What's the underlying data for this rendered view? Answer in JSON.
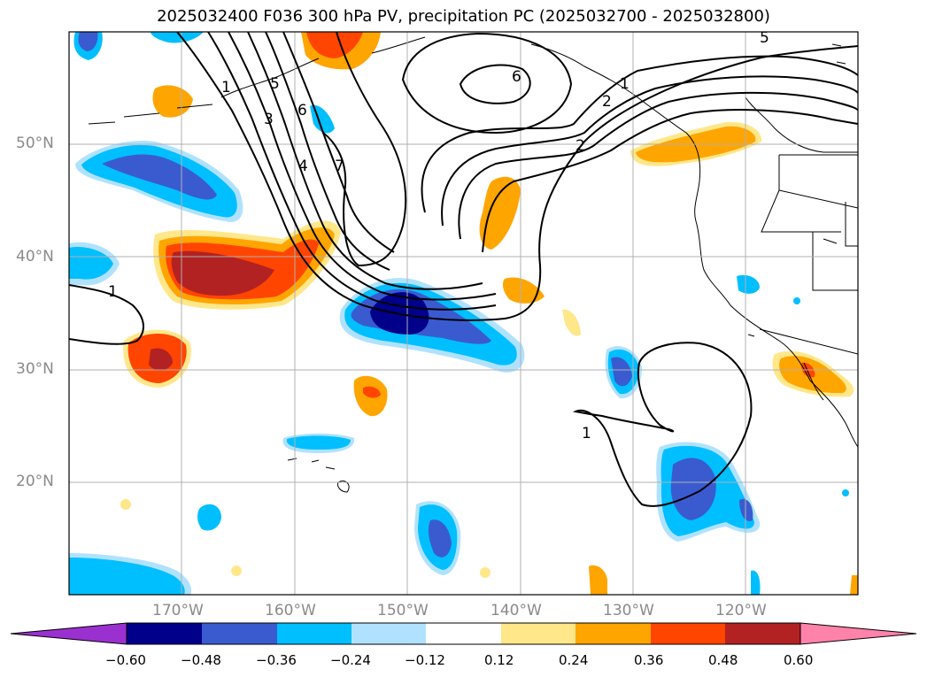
{
  "title": "2025032400 F036 300 hPa PV, precipitation PC (2025032700 - 2025032800)",
  "map": {
    "lat_labels": [
      "50°N",
      "40°N",
      "30°N",
      "20°N"
    ],
    "lon_labels": [
      "170°W",
      "160°W",
      "150°W",
      "140°W",
      "130°W",
      "120°W"
    ],
    "contour_labels": [
      "1",
      "1",
      "1",
      "2",
      "3",
      "4",
      "5",
      "6",
      "6",
      "7",
      "5",
      "2",
      "1"
    ]
  },
  "colorbar": {
    "ticks": [
      "−0.60",
      "−0.48",
      "−0.36",
      "−0.24",
      "−0.12",
      "0.12",
      "0.24",
      "0.36",
      "0.48",
      "0.60"
    ],
    "colors": [
      "#9b30d0",
      "#00008b",
      "#3a5bd0",
      "#00bfff",
      "#b0e2ff",
      "#ffffff",
      "#ffe78a",
      "#ffa500",
      "#ff4500",
      "#b22222",
      "#ff82ab"
    ]
  }
}
